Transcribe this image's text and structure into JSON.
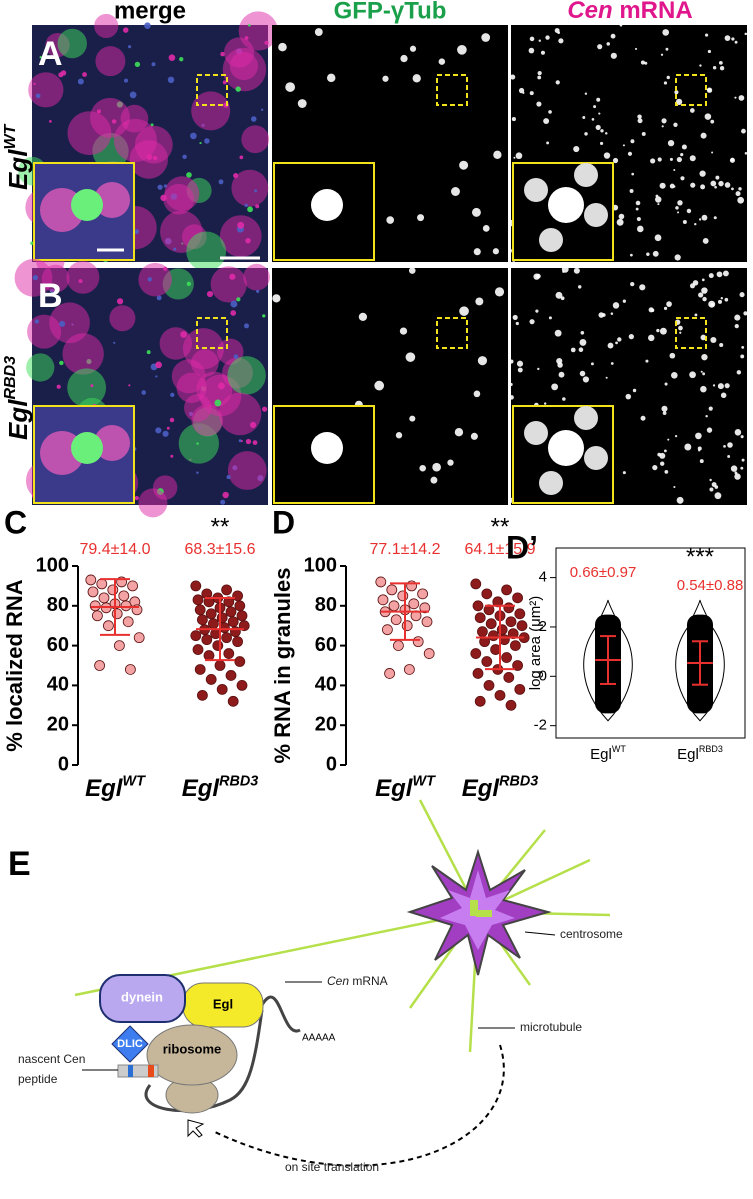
{
  "panels": {
    "column_headers": {
      "merge": "merge",
      "gfp": "GFP-γTub",
      "cen_italic": "Cen",
      "cen_rest": " mRNA"
    },
    "rows": [
      {
        "letter": "A",
        "label": "Egl",
        "label_superscript": "WT"
      },
      {
        "letter": "B",
        "label": "Egl",
        "label_superscript": "RBD3"
      }
    ]
  },
  "chart_data": [
    {
      "type": "strip",
      "panel": "C",
      "y_label": "% localized RNA",
      "categories": [
        "Egl",
        "Egl"
      ],
      "category_superscripts": [
        "WT",
        "RBD3"
      ],
      "groups": [
        {
          "color": "#f3a3a3",
          "values": [
            93,
            92,
            91,
            90,
            88,
            87,
            85,
            84,
            82,
            81,
            80,
            80,
            79,
            78,
            76,
            75,
            72,
            70,
            64,
            60,
            50,
            48
          ]
        },
        {
          "color": "#8e1b1b",
          "values": [
            90,
            88,
            86,
            85,
            84,
            83,
            82,
            82,
            80,
            79,
            78,
            77,
            76,
            75,
            74,
            73,
            72,
            71,
            70,
            69,
            68,
            67,
            66,
            65,
            64,
            63,
            62,
            60,
            58,
            56,
            55,
            52,
            50,
            48,
            45,
            43,
            40,
            38,
            35,
            32
          ]
        }
      ],
      "means": [
        79.4,
        68.3
      ],
      "sds": [
        14.0,
        15.6
      ],
      "mean_labels": [
        "79.4±14.0",
        "68.3±15.6"
      ],
      "mean_color": "#e8312f",
      "significance": "**",
      "ylim": [
        0,
        100
      ],
      "yticks": [
        0,
        20,
        40,
        60,
        80,
        100
      ]
    },
    {
      "type": "strip",
      "panel": "D",
      "y_label": "% RNA in granules",
      "categories": [
        "Egl",
        "Egl"
      ],
      "category_superscripts": [
        "WT",
        "RBD3"
      ],
      "groups": [
        {
          "color": "#f3a3a3",
          "values": [
            92,
            90,
            88,
            86,
            85,
            83,
            81,
            80,
            79,
            78,
            77,
            75,
            73,
            72,
            70,
            68,
            62,
            60,
            56,
            48,
            46
          ]
        },
        {
          "color": "#8e1b1b",
          "values": [
            91,
            88,
            86,
            84,
            82,
            80,
            79,
            78,
            76,
            75,
            74,
            72,
            71,
            70,
            68,
            67,
            66,
            65,
            64,
            63,
            62,
            60,
            58,
            56,
            54,
            52,
            50,
            48,
            46,
            44,
            40,
            38,
            35,
            32,
            30
          ]
        }
      ],
      "means": [
        77.1,
        64.1
      ],
      "sds": [
        14.2,
        15.9
      ],
      "mean_labels": [
        "77.1±14.2",
        "64.1±15.9"
      ],
      "mean_color": "#e8312f",
      "significance": "**",
      "ylim": [
        0,
        100
      ],
      "yticks": [
        0,
        20,
        40,
        60,
        80,
        100
      ]
    },
    {
      "type": "violin",
      "panel": "D’",
      "y_label": "log area (μm²)",
      "categories": [
        "Egl",
        "Egl"
      ],
      "category_superscripts": [
        "WT",
        "RBD3"
      ],
      "means": [
        0.66,
        0.54
      ],
      "sds": [
        0.97,
        0.88
      ],
      "mean_labels": [
        "0.66±0.97",
        "0.54±0.88"
      ],
      "mean_color": "#e8312f",
      "significance": "***",
      "ylim": [
        -2.5,
        5.2
      ],
      "yticks": [
        -2,
        0,
        2,
        4
      ]
    }
  ],
  "diagram": {
    "letter": "E",
    "centrosome": "centrosome",
    "microtubule": "microtubule",
    "mrna_italic": "Cen",
    "mrna_rest": " mRNA",
    "polya": "AAAAA",
    "dynein": "dynein",
    "egl": "Egl",
    "dlic": "DLIC",
    "ribosome": "ribosome",
    "peptide_line1": "nascent Cen",
    "peptide_line2": "peptide",
    "translation": "on site translation"
  }
}
